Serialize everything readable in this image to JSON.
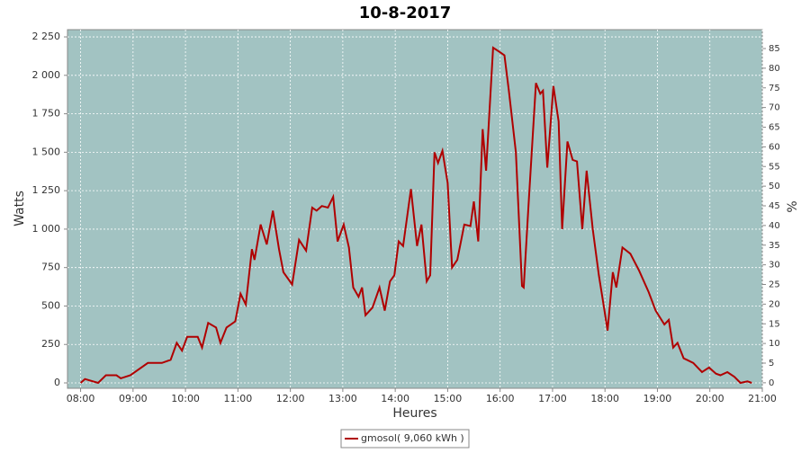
{
  "chart_data": {
    "type": "line",
    "title": "10-8-2017",
    "x_label": "Heures",
    "y_label": "Watts",
    "y2_label": "%",
    "x": [
      "08:00",
      "08:05",
      "08:20",
      "08:29",
      "08:41",
      "08:46",
      "08:57",
      "09:17",
      "09:33",
      "09:43",
      "09:50",
      "09:56",
      "10:02",
      "10:14",
      "10:19",
      "10:26",
      "10:35",
      "10:40",
      "10:47",
      "10:57",
      "11:03",
      "11:09",
      "11:16",
      "11:19",
      "11:26",
      "11:33",
      "11:40",
      "11:47",
      "11:52",
      "12:02",
      "12:10",
      "12:18",
      "12:25",
      "12:30",
      "12:36",
      "12:43",
      "12:49",
      "12:54",
      "13:01",
      "13:07",
      "13:12",
      "13:18",
      "13:22",
      "13:26",
      "13:34",
      "13:42",
      "13:48",
      "13:54",
      "13:59",
      "14:04",
      "14:09",
      "14:18",
      "14:25",
      "14:30",
      "14:36",
      "14:40",
      "14:45",
      "14:49",
      "14:54",
      "15:00",
      "15:05",
      "15:11",
      "15:19",
      "15:26",
      "15:30",
      "15:35",
      "15:40",
      "15:44",
      "15:52",
      "16:00",
      "16:05",
      "16:10",
      "16:18",
      "16:25",
      "16:27",
      "16:33",
      "16:41",
      "16:46",
      "16:49",
      "16:54",
      "17:01",
      "17:07",
      "17:11",
      "17:17",
      "17:23",
      "17:28",
      "17:34",
      "17:39",
      "17:46",
      "17:53",
      "17:58",
      "18:03",
      "18:09",
      "18:13",
      "18:20",
      "18:29",
      "18:39",
      "18:50",
      "18:58",
      "19:08",
      "19:13",
      "19:18",
      "19:23",
      "19:30",
      "19:41",
      "19:51",
      "19:59",
      "20:07",
      "20:12",
      "20:20",
      "20:28",
      "20:35",
      "20:43",
      "20:48"
    ],
    "series": [
      {
        "name": "gmosol( 9,060 kWh )",
        "color": "#b00000",
        "values": [
          0,
          25,
          0,
          50,
          50,
          30,
          50,
          130,
          130,
          150,
          260,
          210,
          300,
          300,
          230,
          390,
          360,
          260,
          360,
          400,
          580,
          510,
          870,
          800,
          1030,
          900,
          1120,
          870,
          720,
          640,
          930,
          860,
          1140,
          1120,
          1150,
          1140,
          1210,
          920,
          1030,
          880,
          620,
          560,
          620,
          440,
          490,
          620,
          470,
          660,
          700,
          920,
          890,
          1260,
          890,
          1030,
          660,
          700,
          1500,
          1430,
          1510,
          1300,
          750,
          800,
          1030,
          1020,
          1180,
          920,
          1650,
          1380,
          2180,
          2150,
          2130,
          1900,
          1500,
          630,
          620,
          1200,
          1950,
          1880,
          1900,
          1400,
          1930,
          1700,
          1000,
          1570,
          1450,
          1440,
          1000,
          1380,
          1000,
          700,
          520,
          340,
          720,
          620,
          880,
          840,
          730,
          590,
          470,
          380,
          410,
          230,
          260,
          160,
          130,
          70,
          100,
          60,
          50,
          70,
          40,
          0,
          10,
          0
        ]
      }
    ],
    "xlim": [
      "07:45",
      "21:00"
    ],
    "xticks": [
      "08:00",
      "09:00",
      "10:00",
      "11:00",
      "12:00",
      "13:00",
      "14:00",
      "15:00",
      "16:00",
      "17:00",
      "18:00",
      "19:00",
      "20:00",
      "21:00"
    ],
    "ylim": [
      -35,
      2297
    ],
    "yticks": [
      0,
      250,
      500,
      750,
      {
        "value": 1000,
        "label": "1 000"
      },
      {
        "value": 1250,
        "label": "1 250"
      },
      {
        "value": 1500,
        "label": "1 500"
      },
      {
        "value": 1750,
        "label": "1 750"
      },
      {
        "value": 2000,
        "label": "2 000"
      },
      {
        "value": 2250,
        "label": "2 250"
      }
    ],
    "y2lim": [
      -1.4,
      89.8
    ],
    "y2ticks": [
      0,
      5,
      10,
      15,
      20,
      25,
      30,
      35,
      40,
      45,
      50,
      55,
      60,
      65,
      70,
      75,
      80,
      85
    ],
    "grid": true,
    "legend": "bottom",
    "plot_background": "#a2c3c2"
  }
}
